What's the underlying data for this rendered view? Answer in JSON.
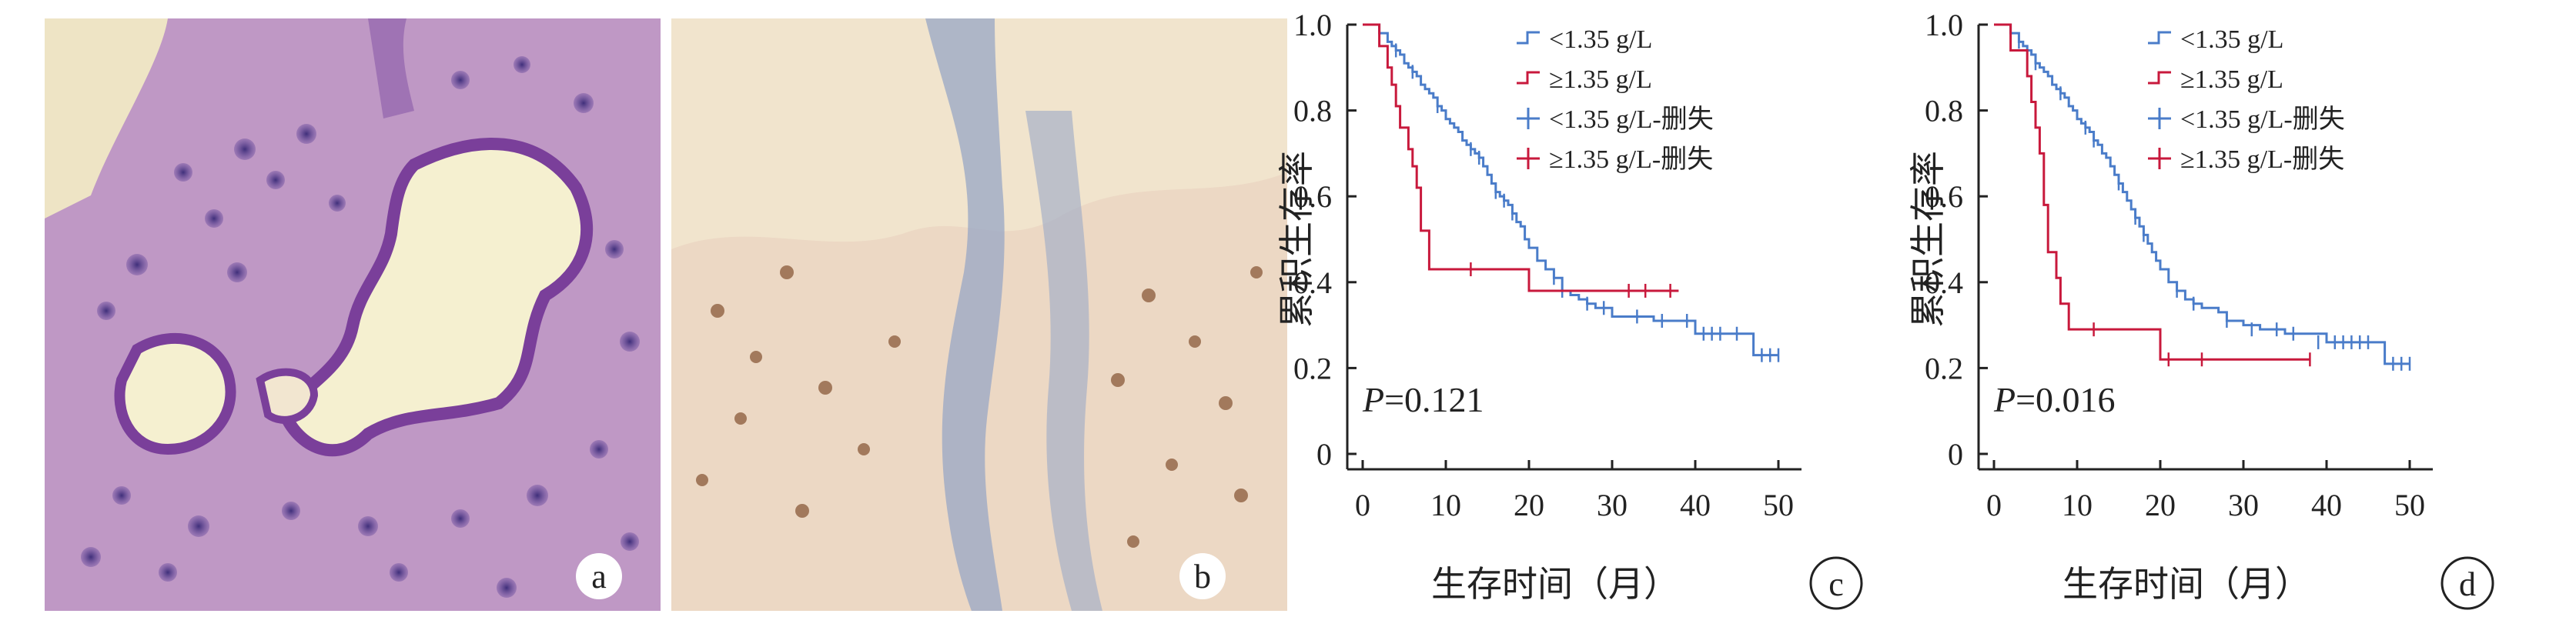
{
  "panels": {
    "a": {
      "letter": "a"
    },
    "b": {
      "letter": "b"
    }
  },
  "colors": {
    "blue": "#4a7cc9",
    "red": "#c8193c"
  },
  "chart_data": [
    {
      "type": "line",
      "panel": "c",
      "xlabel": "生存时间（月）",
      "ylabel": "累积生存率",
      "xlim": [
        0,
        50
      ],
      "ylim": [
        0,
        1.0
      ],
      "xticks": [
        "0",
        "10",
        "20",
        "30",
        "40",
        "50"
      ],
      "yticks": [
        "0",
        "0.2",
        "0.4",
        "0.6",
        "0.8",
        "1.0"
      ],
      "annotation": "P=0.121",
      "annotation_p": "P",
      "annotation_val": "=0.121",
      "legend": [
        "<1.35 g/L",
        "≥1.35 g/L",
        "<1.35 g/L-删失",
        "≥1.35 g/L-删失"
      ],
      "series": [
        {
          "name": "<1.35 g/L",
          "x": [
            0,
            1.2,
            2,
            3,
            3.5,
            4,
            4.5,
            5,
            5.5,
            6,
            6.5,
            7,
            7.5,
            8,
            8.5,
            9,
            9.5,
            10,
            10.5,
            11,
            11.5,
            12,
            12.5,
            13,
            13.5,
            14,
            14.5,
            15,
            15.5,
            16,
            16.5,
            17,
            17.5,
            18,
            18.5,
            19,
            19.5,
            20,
            21,
            22,
            23,
            24,
            25,
            26,
            27,
            28,
            30,
            32,
            35,
            38,
            40,
            44,
            46,
            47,
            50
          ],
          "y": [
            1.0,
            1.0,
            0.98,
            0.96,
            0.95,
            0.94,
            0.93,
            0.91,
            0.9,
            0.89,
            0.88,
            0.86,
            0.85,
            0.84,
            0.83,
            0.81,
            0.8,
            0.78,
            0.77,
            0.76,
            0.75,
            0.73,
            0.72,
            0.71,
            0.7,
            0.69,
            0.67,
            0.65,
            0.63,
            0.61,
            0.6,
            0.59,
            0.58,
            0.56,
            0.54,
            0.53,
            0.5,
            0.48,
            0.45,
            0.43,
            0.41,
            0.38,
            0.37,
            0.36,
            0.35,
            0.34,
            0.32,
            0.32,
            0.31,
            0.31,
            0.28,
            0.28,
            0.28,
            0.23,
            0.23
          ],
          "censored_x": [
            4,
            6,
            9,
            13,
            14,
            16,
            17,
            18,
            23,
            24,
            27,
            29,
            33,
            36,
            39,
            41,
            42,
            43,
            45,
            48,
            49,
            50
          ],
          "censored_y": [
            0.94,
            0.89,
            0.81,
            0.71,
            0.69,
            0.61,
            0.59,
            0.56,
            0.41,
            0.38,
            0.35,
            0.34,
            0.32,
            0.31,
            0.31,
            0.28,
            0.28,
            0.28,
            0.28,
            0.23,
            0.23,
            0.23
          ]
        },
        {
          "name": "≥1.35 g/L",
          "x": [
            0,
            2,
            3,
            3.5,
            4,
            4.5,
            5.5,
            6,
            6.5,
            7,
            8,
            8.5,
            20,
            38
          ],
          "y": [
            1.0,
            0.95,
            0.9,
            0.86,
            0.81,
            0.76,
            0.71,
            0.67,
            0.62,
            0.52,
            0.43,
            0.43,
            0.38,
            0.38
          ],
          "censored_x": [
            13,
            32,
            34,
            37
          ],
          "censored_y": [
            0.43,
            0.38,
            0.38,
            0.38
          ]
        }
      ]
    },
    {
      "type": "line",
      "panel": "d",
      "xlabel": "生存时间（月）",
      "ylabel": "累积生存率",
      "xlim": [
        0,
        50
      ],
      "ylim": [
        0,
        1.0
      ],
      "xticks": [
        "0",
        "10",
        "20",
        "30",
        "40",
        "50"
      ],
      "yticks": [
        "0",
        "0.2",
        "0.4",
        "0.6",
        "0.8",
        "1.0"
      ],
      "annotation": "P=0.016",
      "annotation_p": "P",
      "annotation_val": "=0.016",
      "legend": [
        "<1.35 g/L",
        "≥1.35 g/L",
        "<1.35 g/L-删失",
        "≥1.35 g/L-删失"
      ],
      "series": [
        {
          "name": "<1.35 g/L",
          "x": [
            0,
            1,
            2,
            3,
            3.5,
            4,
            4.5,
            5,
            5.5,
            6,
            6.5,
            7,
            7.5,
            8,
            8.5,
            9,
            9.5,
            10,
            10.5,
            11,
            11.5,
            12,
            12.5,
            13,
            13.5,
            14,
            14.5,
            15,
            15.5,
            16,
            16.5,
            17,
            17.5,
            18,
            18.5,
            19,
            19.5,
            20,
            21,
            22,
            23,
            24,
            25,
            27,
            28,
            30,
            32,
            35,
            37,
            40,
            44,
            46,
            47,
            50
          ],
          "y": [
            1.0,
            1.0,
            0.98,
            0.96,
            0.95,
            0.94,
            0.93,
            0.91,
            0.9,
            0.89,
            0.88,
            0.86,
            0.85,
            0.84,
            0.83,
            0.81,
            0.8,
            0.78,
            0.77,
            0.76,
            0.75,
            0.73,
            0.72,
            0.7,
            0.69,
            0.67,
            0.65,
            0.63,
            0.61,
            0.59,
            0.57,
            0.55,
            0.53,
            0.51,
            0.49,
            0.47,
            0.45,
            0.43,
            0.4,
            0.38,
            0.36,
            0.35,
            0.34,
            0.33,
            0.31,
            0.3,
            0.29,
            0.28,
            0.28,
            0.26,
            0.26,
            0.26,
            0.21,
            0.21
          ],
          "censored_x": [
            3,
            5,
            8,
            11,
            12,
            15,
            17,
            18,
            22,
            24,
            28,
            31,
            34,
            36,
            39,
            41,
            42,
            43,
            44,
            45,
            48,
            49,
            50
          ],
          "censored_y": [
            0.96,
            0.91,
            0.84,
            0.76,
            0.73,
            0.63,
            0.55,
            0.51,
            0.38,
            0.35,
            0.31,
            0.29,
            0.29,
            0.28,
            0.26,
            0.26,
            0.26,
            0.26,
            0.26,
            0.26,
            0.21,
            0.21,
            0.21
          ]
        },
        {
          "name": "≥1.35 g/L",
          "x": [
            0,
            2,
            4,
            4.5,
            5,
            5.5,
            6,
            6.5,
            7.5,
            8,
            9,
            20,
            38
          ],
          "y": [
            1.0,
            0.94,
            0.88,
            0.82,
            0.76,
            0.7,
            0.58,
            0.47,
            0.41,
            0.35,
            0.29,
            0.22,
            0.22
          ],
          "censored_x": [
            12,
            21,
            25,
            38
          ],
          "censored_y": [
            0.29,
            0.22,
            0.22,
            0.22
          ]
        }
      ]
    }
  ]
}
